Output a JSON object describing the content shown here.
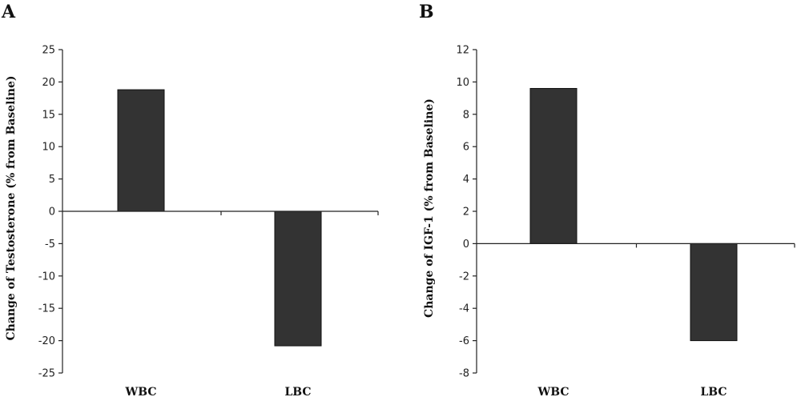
{
  "chart_data": [
    {
      "panel": "A",
      "type": "bar",
      "categories": [
        "WBC",
        "LBC"
      ],
      "values": [
        18.8,
        -20.8
      ],
      "ylabel": "Change of Testosterone (% from Baseline)",
      "ylim": [
        -25,
        25
      ],
      "yticks": [
        25,
        20,
        15,
        10,
        5,
        0,
        -5,
        -10,
        -15,
        -20,
        -25
      ],
      "tick_labels": [
        "25",
        "20",
        "15",
        "10",
        "5",
        "0",
        "-5",
        "-10",
        "-15",
        "-20",
        "-25"
      ],
      "bar_color": "#333333",
      "grid": false
    },
    {
      "panel": "B",
      "type": "bar",
      "categories": [
        "WBC",
        "LBC"
      ],
      "values": [
        9.6,
        -6.0
      ],
      "ylabel": "Change of IGF-1 (% from Baseline)",
      "ylim": [
        -8,
        12
      ],
      "yticks": [
        12,
        10,
        8,
        6,
        4,
        2,
        0,
        -2,
        -4,
        -6,
        -8
      ],
      "tick_labels": [
        "12",
        "10",
        "8",
        "6",
        "4",
        "2",
        "0",
        "-2",
        "-4",
        "-6",
        "-8"
      ],
      "bar_color": "#333333",
      "grid": false
    }
  ]
}
